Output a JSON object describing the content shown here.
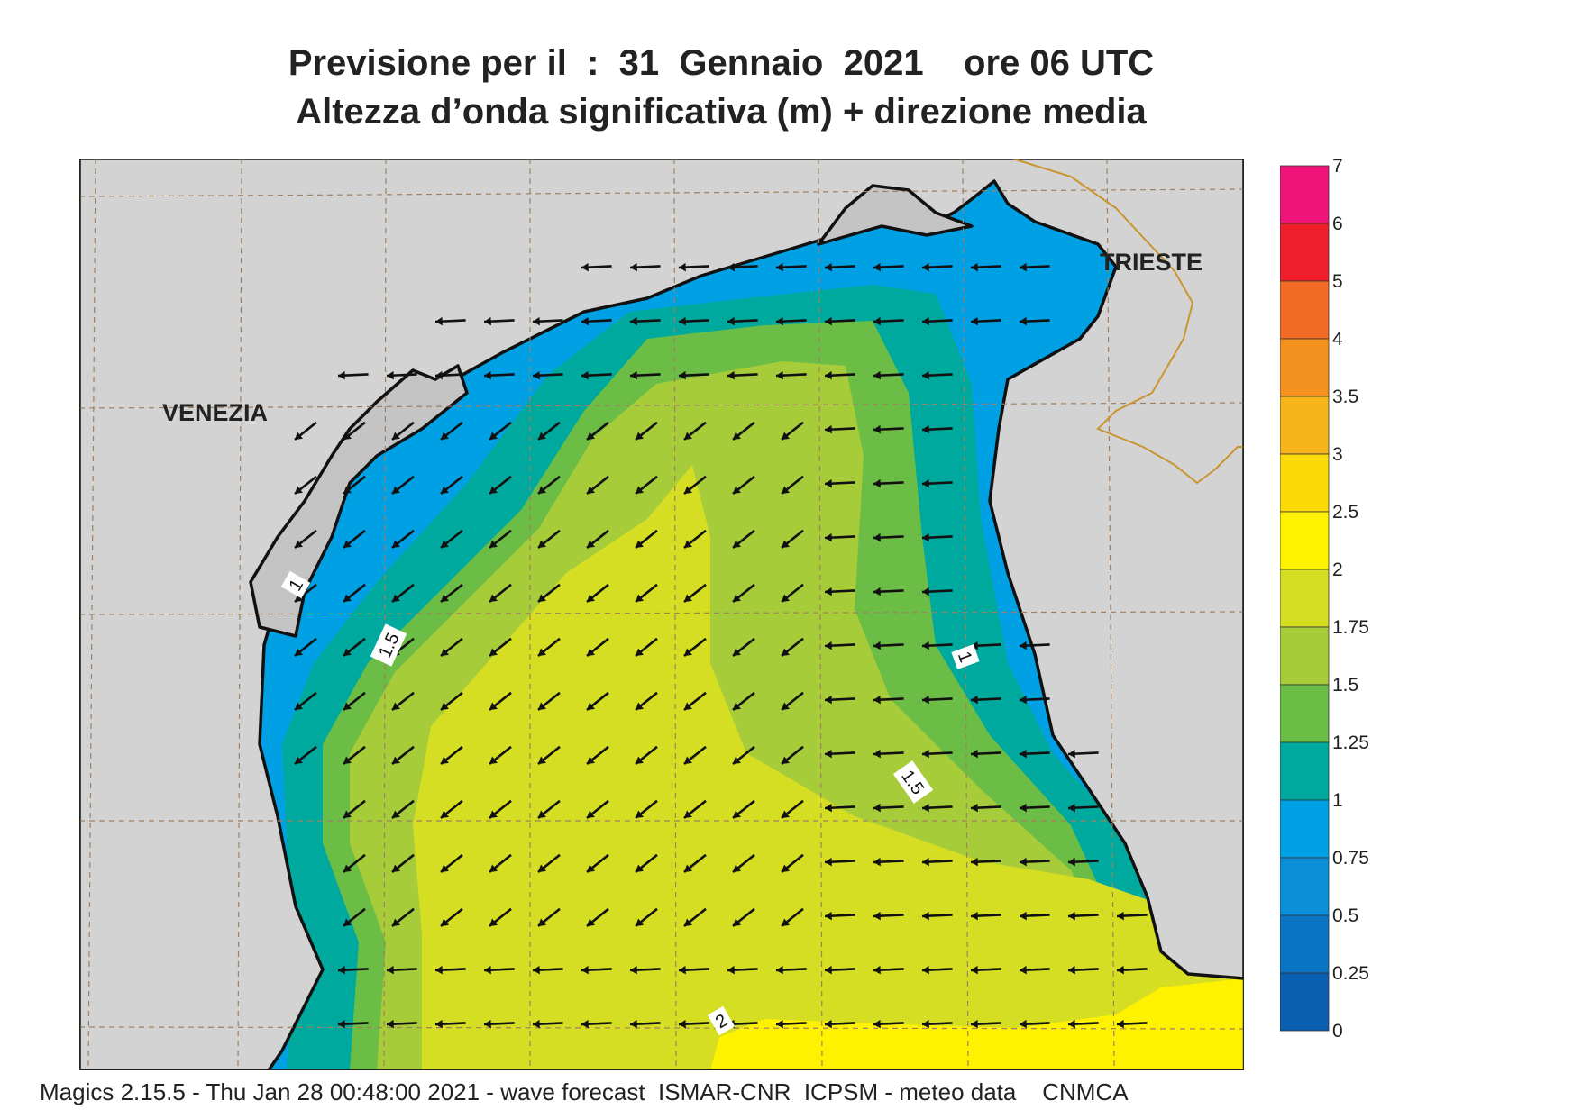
{
  "title": {
    "line1": "Previsione per il  :  31  Gennaio  2021    ore 06 UTC",
    "line2": "Altezza d’onda significativa (m) + direzione media"
  },
  "map": {
    "place_labels": [
      {
        "id": "venezia",
        "text": "VENEZIA"
      },
      {
        "id": "trieste",
        "text": "TRIESTE"
      }
    ],
    "contour_labels": [
      "1",
      "1.5",
      "1",
      "1.5",
      "2"
    ],
    "arrow_direction": "towards west / south-west",
    "colors": {
      "land": "#d3d3d3",
      "coast": "#111111",
      "grid": "#a08060",
      "border": "#c9952e"
    }
  },
  "colorbar": {
    "ticks": [
      "7",
      "6",
      "5",
      "4",
      "3.5",
      "3",
      "2.5",
      "2",
      "1.75",
      "1.5",
      "1.25",
      "1",
      "0.75",
      "0.5",
      "0.25",
      "0"
    ],
    "colors": [
      "#f0147a",
      "#ee1f2a",
      "#f36a24",
      "#f5921f",
      "#f7b51c",
      "#fbdb07",
      "#fff200",
      "#d6de23",
      "#a7cc3a",
      "#6cbd45",
      "#00a99d",
      "#00a0e4",
      "#0c8fd9",
      "#0a74c4",
      "#0a5fb0"
    ]
  },
  "footer": {
    "text": "Magics 2.15.5 - Thu Jan 28 00:48:00 2021 - wave forecast  ISMAR-CNR  ICPSM - meteo data    CNMCA"
  }
}
